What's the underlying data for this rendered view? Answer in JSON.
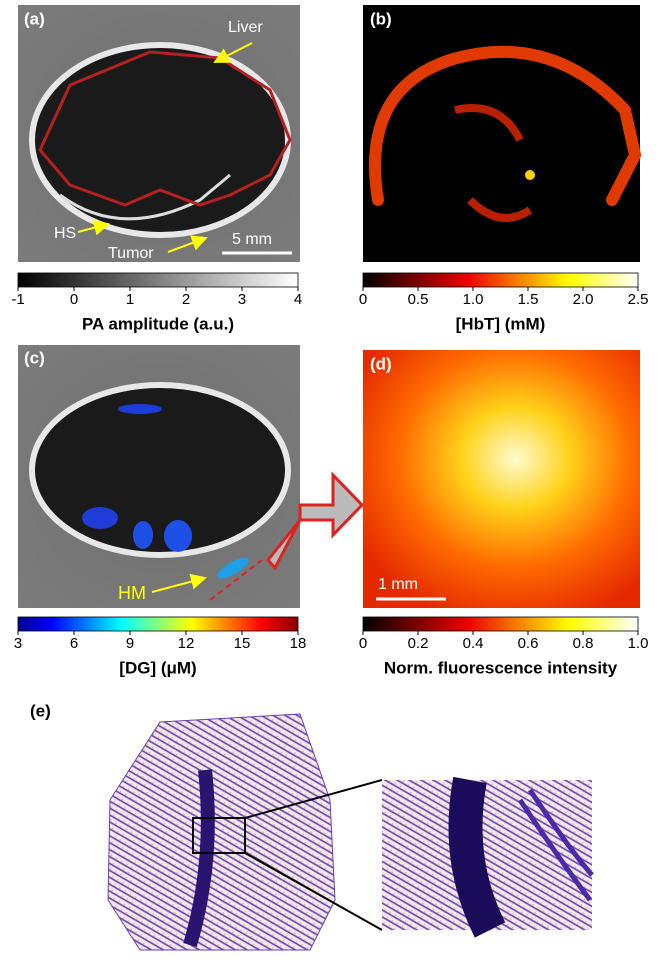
{
  "panels": [
    {
      "label": "(a)",
      "annotations": [
        "Liver",
        "HS",
        "Tumor",
        "5 mm"
      ],
      "colorbar": {
        "title": "PA amplitude (a.u.)",
        "lim": [
          -1,
          4
        ],
        "ticks": [
          -1,
          0,
          1,
          2,
          3,
          4
        ]
      }
    },
    {
      "label": "(b)",
      "colorbar": {
        "title": "[HbT]  (mM)",
        "lim": [
          0,
          2.5
        ],
        "ticks": [
          0,
          0.5,
          {
            "value": 1,
            "label": "1.0"
          },
          1.5,
          {
            "value": 2,
            "label": "2.0"
          },
          2.5
        ]
      }
    },
    {
      "label": "(c)",
      "annotations": [
        "HM"
      ],
      "colorbar": {
        "title": "[DG]  (μM)",
        "lim": [
          3,
          18
        ],
        "ticks": [
          3,
          6,
          9,
          12,
          15,
          18
        ]
      }
    },
    {
      "label": "(d)",
      "annotations": [
        "1 mm"
      ],
      "colorbar": {
        "title": "Norm. fluorescence intensity",
        "lim": [
          0,
          1
        ],
        "ticks": [
          0,
          0.2,
          0.4,
          0.6,
          0.8,
          {
            "value": 1,
            "label": "1.0"
          }
        ]
      }
    },
    {
      "label": "(e)"
    }
  ]
}
